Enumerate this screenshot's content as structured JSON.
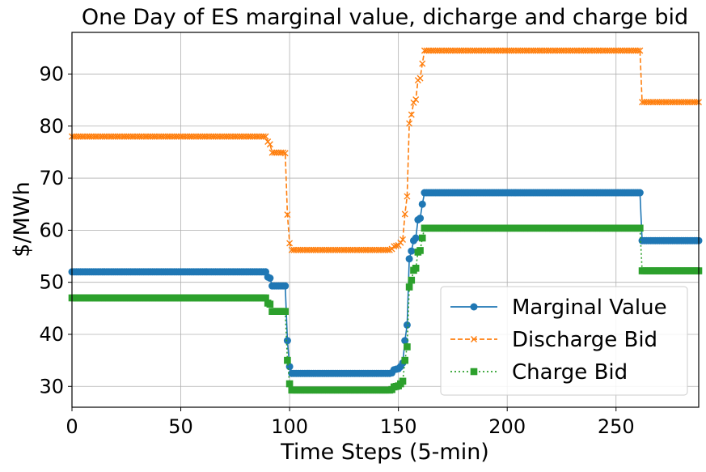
{
  "chart_data": {
    "type": "line",
    "title": "One Day of ES marginal value, dicharge and charge bid",
    "xlabel": "Time Steps (5-min)",
    "ylabel": "$/MWh",
    "xlim": [
      0,
      288
    ],
    "ylim": [
      26,
      98
    ],
    "xticks": [
      "0",
      "50",
      "100",
      "150",
      "200",
      "250"
    ],
    "yticks": [
      "30",
      "40",
      "50",
      "60",
      "70",
      "80",
      "90"
    ],
    "grid": true,
    "legend_position": "lower right",
    "series": [
      {
        "name": "Marginal Value",
        "color": "#1f77b4",
        "line_style": "solid",
        "marker": "circle",
        "segments": [
          {
            "from": 0,
            "to": 89,
            "value": 52.0
          },
          {
            "x": 90,
            "value": 51.0
          },
          {
            "x": 91,
            "value": 50.8
          },
          {
            "from": 92,
            "to": 98,
            "value": 49.3
          },
          {
            "x": 99,
            "value": 38.8
          },
          {
            "x": 100,
            "value": 33.8
          },
          {
            "from": 101,
            "to": 146,
            "value": 32.5
          },
          {
            "x": 147,
            "value": 32.6
          },
          {
            "x": 148,
            "value": 33.2
          },
          {
            "x": 149,
            "value": 33.3
          },
          {
            "x": 150,
            "value": 33.4
          },
          {
            "x": 151,
            "value": 33.8
          },
          {
            "x": 152,
            "value": 34.5
          },
          {
            "x": 153,
            "value": 38.8
          },
          {
            "x": 154,
            "value": 41.8
          },
          {
            "x": 155,
            "value": 54.5
          },
          {
            "x": 156,
            "value": 56.0
          },
          {
            "x": 157,
            "value": 58.0
          },
          {
            "x": 158,
            "value": 58.5
          },
          {
            "x": 159,
            "value": 62.0
          },
          {
            "x": 160,
            "value": 62.3
          },
          {
            "x": 161,
            "value": 65.0
          },
          {
            "from": 162,
            "to": 261,
            "value": 67.2
          },
          {
            "from": 262,
            "to": 288,
            "value": 58.0
          }
        ]
      },
      {
        "name": "Discharge Bid",
        "color": "#ff7f0e",
        "line_style": "dashed",
        "marker": "x",
        "segments": [
          {
            "from": 0,
            "to": 89,
            "value": 78.0
          },
          {
            "x": 90,
            "value": 77.0
          },
          {
            "x": 91,
            "value": 76.5
          },
          {
            "from": 92,
            "to": 97,
            "value": 74.9
          },
          {
            "x": 98,
            "value": 74.8
          },
          {
            "x": 99,
            "value": 63.0
          },
          {
            "x": 100,
            "value": 57.5
          },
          {
            "from": 101,
            "to": 146,
            "value": 56.2
          },
          {
            "x": 147,
            "value": 56.4
          },
          {
            "x": 148,
            "value": 56.9
          },
          {
            "x": 149,
            "value": 57.0
          },
          {
            "x": 150,
            "value": 57.1
          },
          {
            "x": 151,
            "value": 57.6
          },
          {
            "x": 152,
            "value": 58.2
          },
          {
            "x": 153,
            "value": 63.1
          },
          {
            "x": 154,
            "value": 66.5
          },
          {
            "x": 155,
            "value": 80.5
          },
          {
            "x": 156,
            "value": 82.2
          },
          {
            "x": 157,
            "value": 84.5
          },
          {
            "x": 158,
            "value": 85.1
          },
          {
            "x": 159,
            "value": 88.8
          },
          {
            "x": 160,
            "value": 89.2
          },
          {
            "x": 161,
            "value": 92.0
          },
          {
            "from": 162,
            "to": 261,
            "value": 94.5
          },
          {
            "from": 262,
            "to": 288,
            "value": 84.6
          }
        ]
      },
      {
        "name": "Charge Bid",
        "color": "#2ca02c",
        "line_style": "dotted",
        "marker": "square",
        "segments": [
          {
            "from": 0,
            "to": 89,
            "value": 47.0
          },
          {
            "x": 90,
            "value": 46.0
          },
          {
            "x": 91,
            "value": 45.8
          },
          {
            "from": 92,
            "to": 98,
            "value": 44.4
          },
          {
            "x": 99,
            "value": 35.0
          },
          {
            "x": 100,
            "value": 30.5
          },
          {
            "from": 101,
            "to": 146,
            "value": 29.3
          },
          {
            "x": 147,
            "value": 29.4
          },
          {
            "x": 148,
            "value": 29.9
          },
          {
            "x": 149,
            "value": 30.0
          },
          {
            "x": 150,
            "value": 30.1
          },
          {
            "x": 151,
            "value": 30.5
          },
          {
            "x": 152,
            "value": 31.0
          },
          {
            "x": 153,
            "value": 35.0
          },
          {
            "x": 154,
            "value": 37.6
          },
          {
            "x": 155,
            "value": 49.1
          },
          {
            "x": 156,
            "value": 50.4
          },
          {
            "x": 157,
            "value": 52.3
          },
          {
            "x": 158,
            "value": 52.7
          },
          {
            "x": 159,
            "value": 55.8
          },
          {
            "x": 160,
            "value": 56.1
          },
          {
            "x": 161,
            "value": 58.5
          },
          {
            "from": 162,
            "to": 261,
            "value": 60.4
          },
          {
            "from": 262,
            "to": 288,
            "value": 52.2
          }
        ]
      }
    ]
  }
}
